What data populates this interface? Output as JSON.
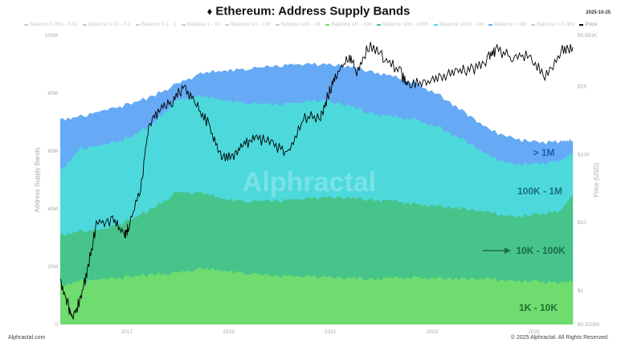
{
  "header": {
    "title": "Ethereum: Address Supply Bands",
    "date": "2025-10-25",
    "icon": "ethereum-diamond-icon"
  },
  "legend": [
    {
      "label": "Balance 0.001 - 0.01",
      "color": "#cccccc"
    },
    {
      "label": "Balance 0.01 - 0.1",
      "color": "#cccccc"
    },
    {
      "label": "Balance 0.1 - 1",
      "color": "#cccccc"
    },
    {
      "label": "Balance 1 - 10",
      "color": "#cccccc"
    },
    {
      "label": "Balance 10 - 100",
      "color": "#cccccc"
    },
    {
      "label": "Balance 100 - 1K",
      "color": "#cccccc"
    },
    {
      "label": "Balance 1K - 10K",
      "color": "#6fdc6f"
    },
    {
      "label": "Balance 10K - 100K",
      "color": "#47c48a"
    },
    {
      "label": "Balance 100K - 1M",
      "color": "#4dd9dc"
    },
    {
      "label": "Balance > 1M",
      "color": "#66aaf5"
    },
    {
      "label": "Balance < 0.001",
      "color": "#cccccc"
    },
    {
      "label": "Price",
      "color": "#000000"
    }
  ],
  "footer": {
    "left": "Alphractal.com",
    "right": "© 2025 Alphractal. All Rights Reserved.",
    "watermark": "Alphractal"
  },
  "chart_data": {
    "type": "area",
    "stacked": true,
    "title": "Ethereum: Address Supply Bands",
    "ylabel": "Address Supply Bands",
    "y2label": "Price (USD)",
    "ylim": [
      0,
      100
    ],
    "y_ticks": [
      "0",
      "20M",
      "40M",
      "60M",
      "80M",
      "100M"
    ],
    "y2_scale": "log",
    "y2lim": [
      0.32,
      5581
    ],
    "y2_ticks": [
      "$0.32000",
      "$1",
      "$10",
      "$100",
      "$1K",
      "$5.581K"
    ],
    "x_ticks": [
      "2017",
      "2019",
      "2021",
      "2023",
      "2025"
    ],
    "xlim": [
      2015.69,
      2025.8
    ],
    "x": [
      2015.69,
      2016.09,
      2016.56,
      2017.03,
      2017.5,
      2017.98,
      2018.45,
      2018.92,
      2019.39,
      2019.87,
      2020.34,
      2020.81,
      2021.28,
      2021.76,
      2022.23,
      2022.7,
      2023.17,
      2023.65,
      2024.12,
      2024.59,
      2025.06,
      2025.54,
      2025.77
    ],
    "series": [
      {
        "name": "Balance 1K - 10K",
        "color": "#6fdc6f",
        "label": "1K - 10K",
        "label_color": "#1d6e2c",
        "values": [
          13.6,
          15.0,
          15.8,
          16.4,
          17.2,
          17.8,
          19.2,
          18.6,
          17.8,
          16.9,
          16.7,
          16.4,
          16.1,
          15.8,
          16.1,
          16.1,
          15.8,
          15.8,
          15.6,
          15.0,
          14.7,
          14.4,
          15.0
        ]
      },
      {
        "name": "Balance 10K - 100K",
        "color": "#47c48a",
        "label": "10K - 100K",
        "label_color": "#196b4c",
        "values": [
          17.5,
          17.2,
          17.3,
          19.4,
          22.8,
          27.8,
          26.4,
          24.7,
          25.0,
          25.9,
          26.6,
          27.5,
          27.8,
          27.5,
          26.7,
          25.3,
          25.0,
          24.2,
          23.0,
          22.2,
          23.1,
          25.0,
          30.0
        ]
      },
      {
        "name": "Balance 100K - 1M",
        "color": "#4dd9dc",
        "label": "100K - 1M",
        "label_color": "#18707a",
        "values": [
          22.2,
          28.6,
          29.1,
          28.6,
          29.2,
          31.9,
          33.3,
          34.2,
          33.9,
          33.3,
          33.4,
          33.6,
          32.2,
          30.0,
          29.1,
          29.2,
          27.0,
          23.6,
          19.5,
          18.1,
          17.5,
          17.3,
          14.4
        ]
      },
      {
        "name": "Balance > 1M",
        "color": "#66aaf5",
        "label": "> 1M",
        "label_color": "#1a5fb0",
        "values": [
          17.8,
          11.1,
          12.0,
          11.7,
          9.7,
          5.6,
          7.8,
          10.3,
          11.9,
          13.3,
          13.3,
          12.5,
          13.3,
          14.5,
          13.9,
          12.5,
          11.1,
          9.7,
          9.1,
          9.1,
          7.5,
          6.6,
          4.2
        ]
      }
    ],
    "price": {
      "name": "Price",
      "color": "#000000",
      "axis": "right",
      "x": [
        2015.69,
        2015.85,
        2015.93,
        2016.09,
        2016.24,
        2016.4,
        2016.72,
        2016.95,
        2017.03,
        2017.27,
        2017.43,
        2017.66,
        2017.9,
        2018.13,
        2018.37,
        2018.61,
        2018.84,
        2019.08,
        2019.31,
        2019.55,
        2019.87,
        2020.18,
        2020.5,
        2020.81,
        2020.97,
        2021.13,
        2021.36,
        2021.52,
        2021.76,
        2022.07,
        2022.39,
        2022.54,
        2022.86,
        2023.17,
        2023.49,
        2023.8,
        2024.12,
        2024.28,
        2024.59,
        2024.91,
        2025.22,
        2025.54,
        2025.77
      ],
      "values": [
        1.66,
        0.65,
        0.44,
        0.85,
        2.5,
        10.7,
        12.2,
        7.2,
        9.4,
        35,
        298,
        510,
        660,
        1130,
        580,
        298,
        103,
        103,
        152,
        200,
        152,
        117,
        390,
        390,
        870,
        1690,
        2870,
        1920,
        4250,
        2870,
        1690,
        1130,
        1290,
        1480,
        1920,
        1920,
        2870,
        3730,
        2870,
        3240,
        1480,
        3730,
        3730
      ]
    },
    "annotations": [
      {
        "text": "arrow",
        "target": "10K - 100K"
      }
    ],
    "grid": false,
    "legend_position": "top"
  }
}
